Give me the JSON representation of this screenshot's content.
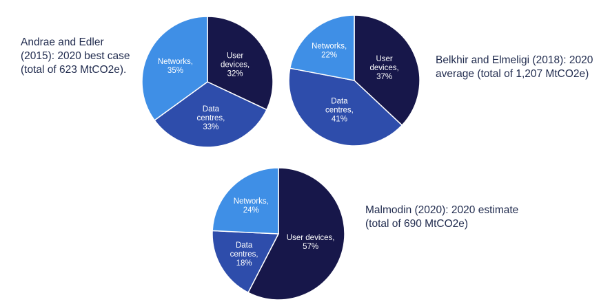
{
  "colors": {
    "User devices": "#17174a",
    "Data centres": "#2e4dab",
    "Networks": "#3f8fe6",
    "text": "#1f2a4d"
  },
  "chart_data": [
    {
      "type": "pie",
      "title": "Andrae and Edler (2015): 2020 best case (total of 623 MtCO2e).",
      "title_lines": [
        "Andrae and Edler",
        "(2015): 2020 best case",
        "(total of 623 MtCO2e)."
      ],
      "slices": [
        {
          "label": "User devices",
          "value": 32,
          "label_lines": [
            "User",
            "devices,",
            "32%"
          ]
        },
        {
          "label": "Data centres",
          "value": 33,
          "label_lines": [
            "Data",
            "centres,",
            "33%"
          ]
        },
        {
          "label": "Networks",
          "value": 35,
          "label_lines": [
            "Networks,",
            "35%"
          ]
        }
      ]
    },
    {
      "type": "pie",
      "title": "Belkhir and Elmeligi (2018): 2020 average (total of 1,207 MtCO2e)",
      "title_lines": [
        "Belkhir and Elmeligi (2018): 2020",
        "average (total of 1,207 MtCO2e)"
      ],
      "slices": [
        {
          "label": "User devices",
          "value": 37,
          "label_lines": [
            "User",
            "devices,",
            "37%"
          ]
        },
        {
          "label": "Data centres",
          "value": 41,
          "label_lines": [
            "Data",
            "centres,",
            "41%"
          ]
        },
        {
          "label": "Networks",
          "value": 22,
          "label_lines": [
            "Networks,",
            "22%"
          ]
        }
      ]
    },
    {
      "type": "pie",
      "title": "Malmodin (2020): 2020 estimate (total of 690 MtCO2e)",
      "title_lines": [
        "Malmodin (2020): 2020 estimate",
        "(total of 690 MtCO2e)"
      ],
      "slices": [
        {
          "label": "User devices",
          "value": 57,
          "label_lines": [
            "User devices,",
            "57%"
          ]
        },
        {
          "label": "Data centres",
          "value": 18,
          "label_lines": [
            "Data",
            "centres,",
            "18%"
          ]
        },
        {
          "label": "Networks",
          "value": 24,
          "label_lines": [
            "Networks,",
            "24%"
          ]
        }
      ]
    }
  ]
}
